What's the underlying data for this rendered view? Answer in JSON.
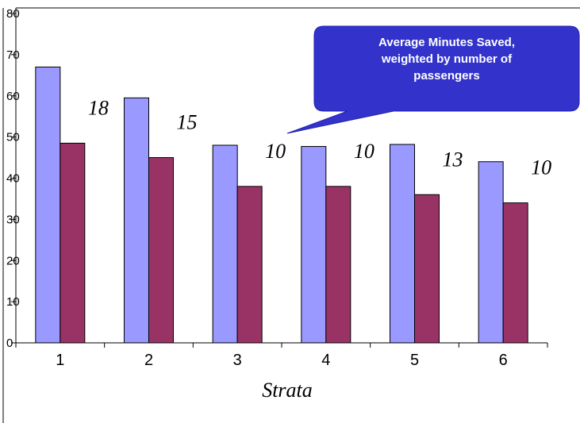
{
  "chart_data": {
    "type": "bar",
    "categories": [
      "1",
      "2",
      "3",
      "4",
      "5",
      "6"
    ],
    "series": [
      {
        "values": [
          67,
          59.5,
          48,
          47.7,
          48.2,
          44
        ]
      },
      {
        "values": [
          48.5,
          45,
          38,
          38,
          36,
          34
        ]
      }
    ],
    "data_labels": [
      "18",
      "15",
      "10",
      "10",
      "13",
      "10"
    ],
    "xlabel": "Strata",
    "ylabel": "",
    "ylim": [
      0,
      80
    ],
    "yticks": [
      "0",
      "10",
      "20",
      "30",
      "40",
      "50",
      "60",
      "70",
      "80"
    ],
    "grid": false,
    "legend": "none",
    "colors": {
      "series1": "#9999ff",
      "series2": "#993366",
      "callout": "#3333cc",
      "callout_text": "#ffffff"
    },
    "annotation": {
      "lines": [
        "Average Minutes Saved,",
        "weighted by number of",
        "passengers"
      ]
    }
  }
}
